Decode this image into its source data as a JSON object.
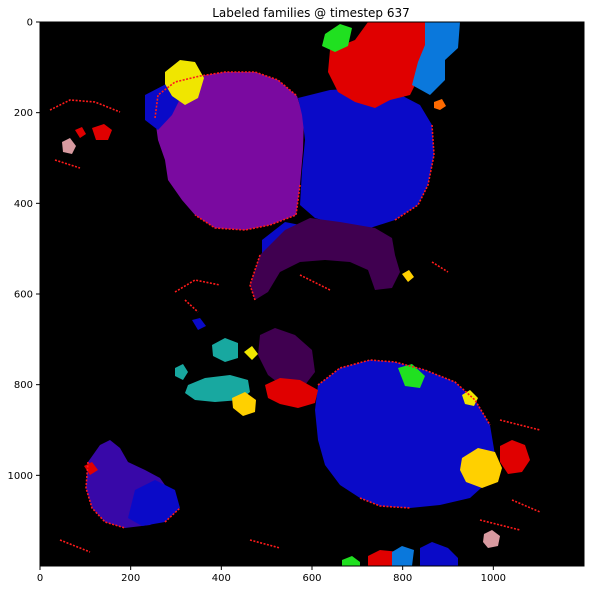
{
  "figure": {
    "title": "Labeled families @ timestep 637"
  },
  "axes": {
    "x_ticks": [
      "0",
      "200",
      "400",
      "600",
      "800",
      "1000"
    ],
    "y_ticks": [
      "0",
      "200",
      "400",
      "600",
      "800",
      "1000"
    ],
    "x_range": [
      0,
      1200
    ],
    "y_range": [
      0,
      1200
    ],
    "y_inverted": true,
    "background": "#000000"
  },
  "palette": {
    "purple": "#7a0aa0",
    "blue": "#0a0ac8",
    "dark_purple": "#400050",
    "red": "#e00000",
    "azure": "#0a78dc",
    "green": "#20e020",
    "yellow": "#f0e600",
    "gold": "#ffd000",
    "teal": "#18a8a0",
    "indigo": "#3808a8",
    "orange": "#ff6a00",
    "pink": "#d89aa0",
    "edge": "#ff1a1a"
  }
}
